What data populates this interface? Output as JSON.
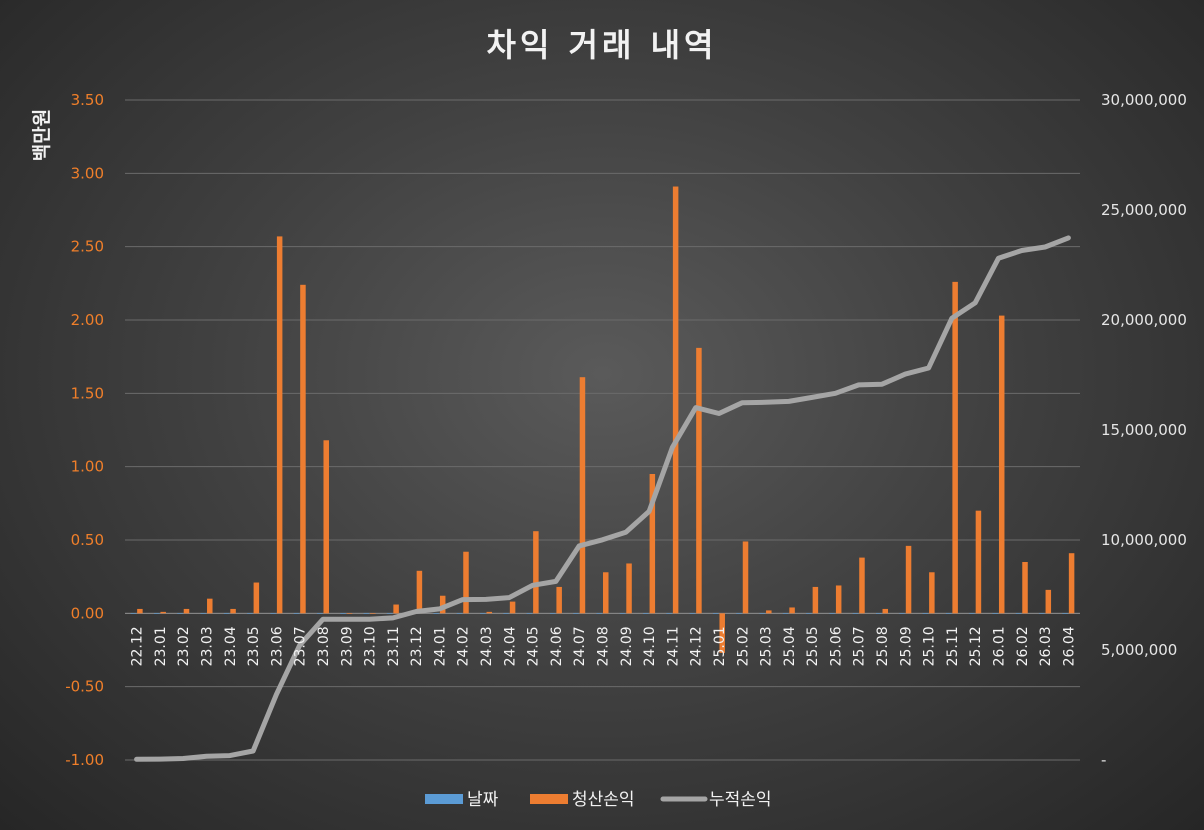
{
  "chart_data": {
    "type": "bar",
    "title": "차익 거래 내역",
    "ylabel": "백만원",
    "xlabel": "",
    "ylim": [
      -1.0,
      3.5
    ],
    "y2lim": [
      0,
      30000000
    ],
    "y_ticks": [
      "3.50",
      "3.00",
      "2.50",
      "2.00",
      "1.50",
      "1.00",
      "0.50",
      "0.00",
      "-0.50",
      "-1.00"
    ],
    "y2_ticks": [
      "30,000,000",
      "25,000,000",
      "20,000,000",
      "15,000,000",
      "10,000,000",
      "5,000,000",
      "-"
    ],
    "categories": [
      "22.12",
      "23.01",
      "23.02",
      "23.03",
      "23.04",
      "23.05",
      "23.06",
      "23.07",
      "23.08",
      "23.09",
      "23.10",
      "23.11",
      "23.12",
      "24.01",
      "24.02",
      "24.03",
      "24.04",
      "24.05",
      "24.06",
      "24.07",
      "24.08",
      "24.09",
      "24.10",
      "24.11",
      "24.12",
      "25.01",
      "25.02",
      "25.03",
      "25.04",
      "25.05",
      "25.06",
      "25.07",
      "25.08",
      "25.09",
      "25.10",
      "25.11",
      "25.12",
      "26.01",
      "26.02",
      "26.03",
      "26.04"
    ],
    "series": [
      {
        "name": "날짜",
        "type": "bar",
        "color": "#5b9bd5",
        "values": [
          0.002,
          0.002,
          0.002,
          0.002,
          0.002,
          0.002,
          0.002,
          0.002,
          0.002,
          0.002,
          0.002,
          0.002,
          0.002,
          0.002,
          0.002,
          0.002,
          0.002,
          0.002,
          0.002,
          0.002,
          0.002,
          0.002,
          0.002,
          0.002,
          0.002,
          0.002,
          0.002,
          0.002,
          0.002,
          0.002,
          0.002,
          0.002,
          0.002,
          0.002,
          0.002,
          0.002,
          0.002,
          0.002,
          0.002,
          0.002,
          0.002
        ]
      },
      {
        "name": "청산손익",
        "type": "bar",
        "color": "#ed7d31",
        "values": [
          0.03,
          0.01,
          0.03,
          0.1,
          0.03,
          0.21,
          2.57,
          2.24,
          1.18,
          0.0,
          0.0,
          0.06,
          0.29,
          0.12,
          0.42,
          0.01,
          0.08,
          0.56,
          0.18,
          1.61,
          0.28,
          0.34,
          0.95,
          2.91,
          1.81,
          -0.27,
          0.49,
          0.02,
          0.04,
          0.18,
          0.19,
          0.38,
          0.03,
          0.46,
          0.28,
          2.26,
          0.7,
          2.03,
          0.35,
          0.16,
          0.41
        ]
      },
      {
        "name": "누적손익",
        "type": "line",
        "axis": "secondary",
        "color": "#a5a5a5",
        "values": [
          30000,
          40000,
          70000,
          170000,
          200000,
          410000,
          2980000,
          5220000,
          6400000,
          6400000,
          6400000,
          6460000,
          6750000,
          6870000,
          7290000,
          7300000,
          7380000,
          7940000,
          8120000,
          9730000,
          10010000,
          10350000,
          11300000,
          14210000,
          16020000,
          15750000,
          16240000,
          16260000,
          16300000,
          16480000,
          16670000,
          17050000,
          17080000,
          17540000,
          17820000,
          20080000,
          20780000,
          22810000,
          23160000,
          23320000,
          23730000
        ]
      }
    ],
    "legend_position": "bottom",
    "grid": true
  }
}
